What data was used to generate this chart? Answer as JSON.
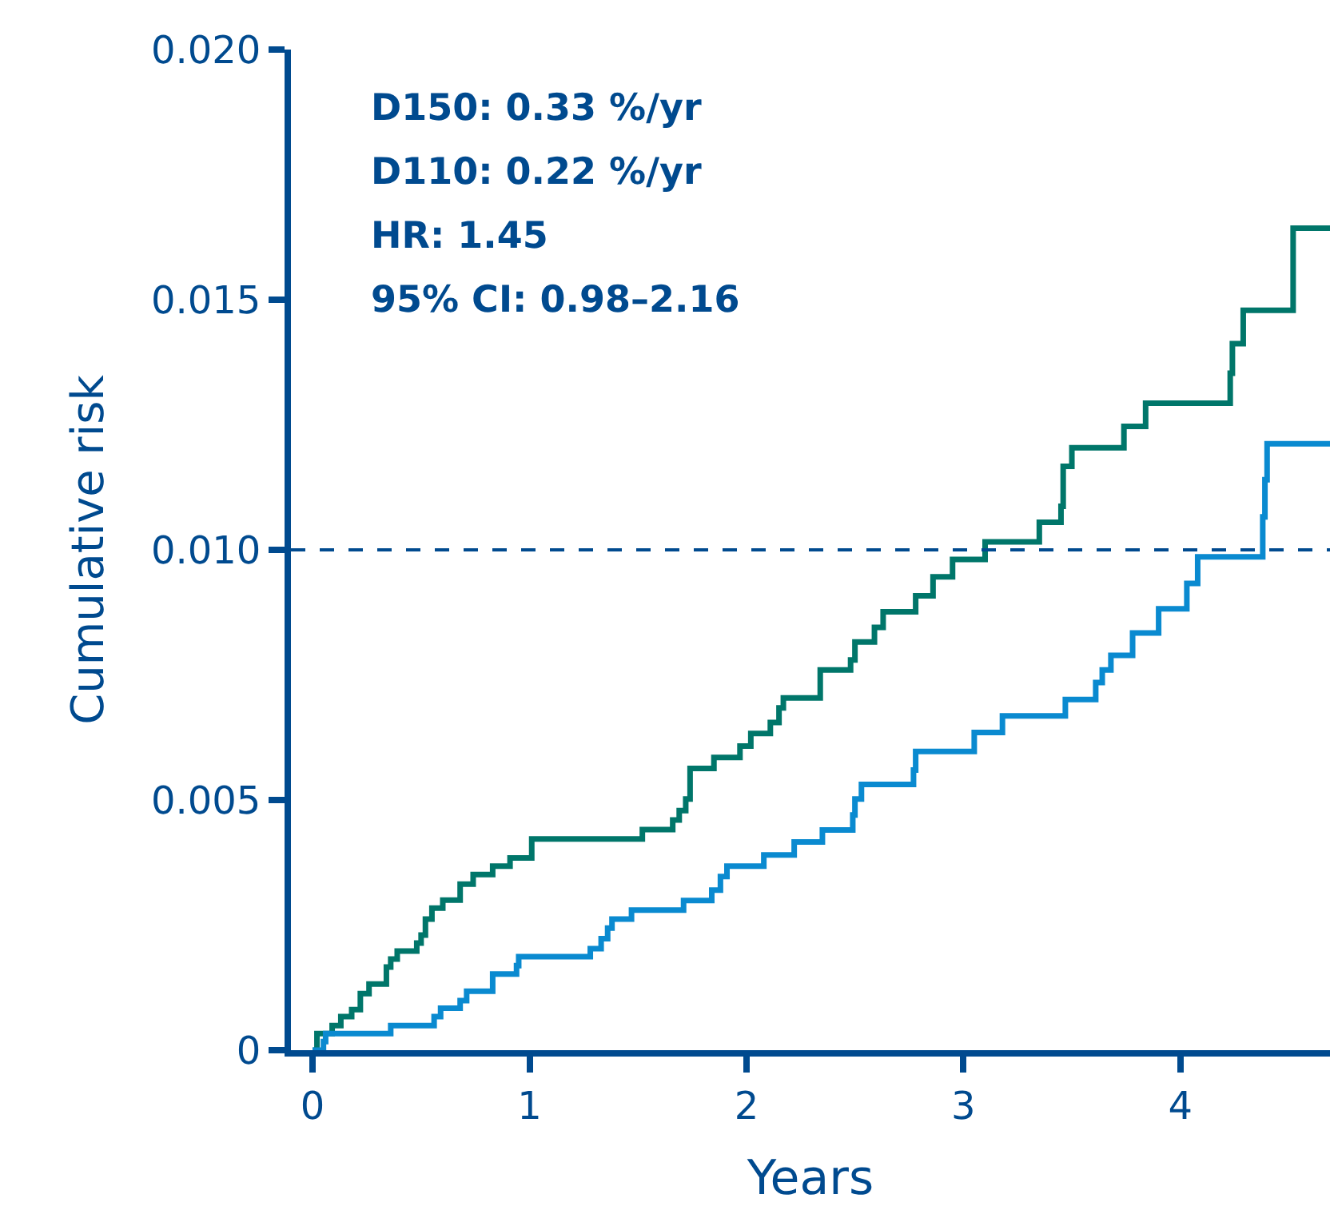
{
  "chart_data": {
    "type": "step",
    "xlabel": "Years",
    "ylabel": "Cumulative risk",
    "annotations": [
      "D150: 0.33 %/yr",
      "D110: 0.22 %/yr",
      "HR: 1.45",
      "95% CI: 0.98–2.16"
    ],
    "xlim": [
      -0.1,
      4.69
    ],
    "xticks": [
      0,
      1,
      2,
      3,
      4
    ],
    "ylim": [
      0,
      0.02
    ],
    "yticks": [
      0,
      0.005,
      {
        "value": 0.01,
        "label": "0.010"
      },
      0.015,
      {
        "value": 0.02,
        "label": "0.020"
      }
    ],
    "grid": false,
    "marker": "none",
    "line_style": "solid",
    "ref_lines": [
      {
        "axis": "y",
        "value": 0.01,
        "label": null,
        "color": "#004a8f",
        "line_style": "dashed"
      }
    ],
    "series": [
      {
        "color": "#00766a",
        "x": [
          0,
          0.02,
          0.09,
          0.13,
          0.18,
          0.22,
          0.26,
          0.34,
          0.36,
          0.39,
          0.48,
          0.5,
          0.52,
          0.55,
          0.6,
          0.68,
          0.74,
          0.83,
          0.91,
          1.01,
          1.52,
          1.66,
          1.69,
          1.72,
          1.74,
          1.85,
          1.97,
          2.02,
          2.11,
          2.15,
          2.17,
          2.34,
          2.48,
          2.5,
          2.59,
          2.63,
          2.78,
          2.86,
          2.95,
          3.1,
          3.35,
          3.45,
          3.46,
          3.5,
          3.74,
          3.84,
          4.23,
          4.24,
          4.29,
          4.52,
          4.69
        ],
        "values": [
          0,
          0.00033,
          0.00049,
          0.00067,
          0.00081,
          0.00113,
          0.00132,
          0.00166,
          0.00182,
          0.00198,
          0.00214,
          0.0023,
          0.00262,
          0.00284,
          0.003,
          0.00332,
          0.00351,
          0.00368,
          0.00384,
          0.00422,
          0.00441,
          0.0046,
          0.00479,
          0.00502,
          0.00563,
          0.00585,
          0.00608,
          0.00633,
          0.00655,
          0.00684,
          0.00704,
          0.0076,
          0.0078,
          0.00816,
          0.00845,
          0.00876,
          0.00908,
          0.00946,
          0.00981,
          0.01016,
          0.01055,
          0.01087,
          0.01167,
          0.01204,
          0.01247,
          0.01293,
          0.01353,
          0.01412,
          0.01479,
          0.01643,
          0.01643
        ]
      },
      {
        "color": "#0a8ad0",
        "x": [
          0,
          0.05,
          0.06,
          0.36,
          0.56,
          0.59,
          0.68,
          0.71,
          0.83,
          0.94,
          0.95,
          1.28,
          1.33,
          1.36,
          1.38,
          1.47,
          1.71,
          1.84,
          1.88,
          1.91,
          2.08,
          2.22,
          2.35,
          2.49,
          2.5,
          2.53,
          2.77,
          2.78,
          3.05,
          3.18,
          3.47,
          3.61,
          3.64,
          3.68,
          3.78,
          3.9,
          4.03,
          4.08,
          4.38,
          4.39,
          4.4,
          4.69
        ],
        "values": [
          0,
          0.00017,
          0.00033,
          0.00049,
          0.00067,
          0.00084,
          0.00099,
          0.00118,
          0.00152,
          0.00169,
          0.00187,
          0.00203,
          0.00223,
          0.00244,
          0.00262,
          0.0028,
          0.00299,
          0.0032,
          0.00347,
          0.00368,
          0.0039,
          0.00416,
          0.0044,
          0.0047,
          0.00502,
          0.00531,
          0.0056,
          0.00597,
          0.00635,
          0.00668,
          0.00701,
          0.00735,
          0.0076,
          0.00789,
          0.00834,
          0.00882,
          0.00933,
          0.00986,
          0.01066,
          0.0114,
          0.01212,
          0.01212
        ]
      }
    ]
  }
}
